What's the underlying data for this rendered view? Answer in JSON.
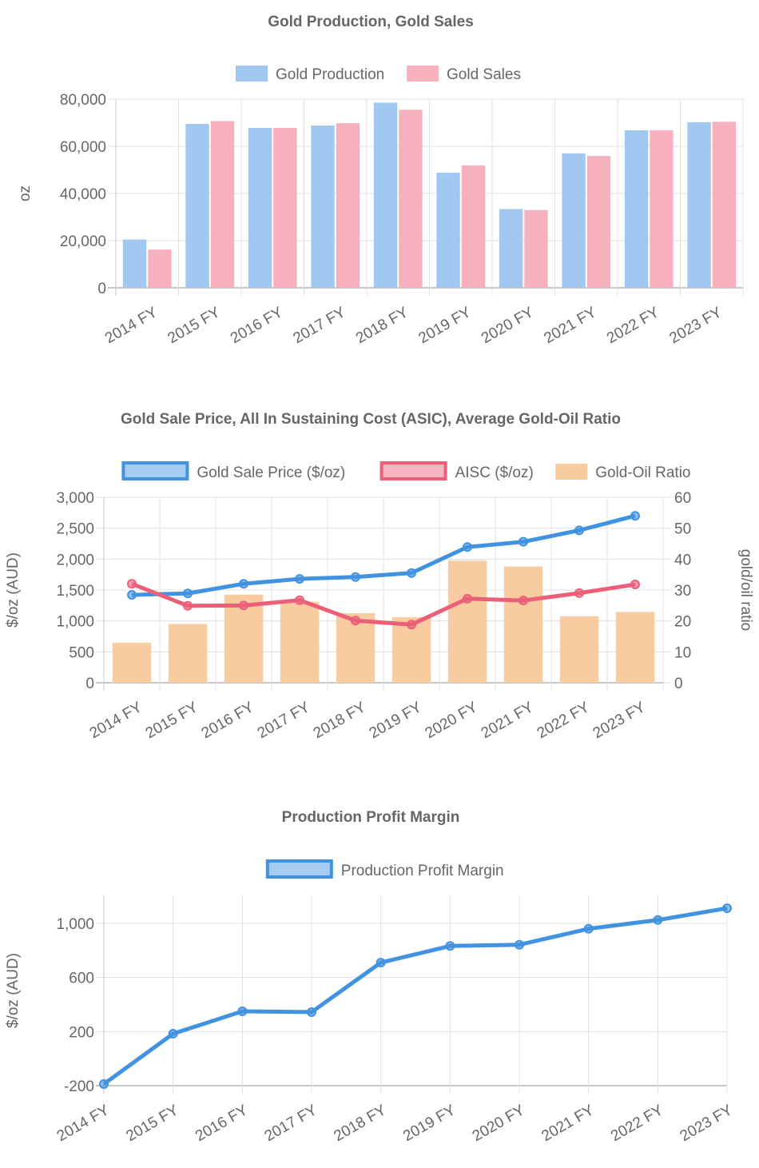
{
  "chart_data": [
    {
      "type": "bar",
      "title": "Gold Production, Gold Sales",
      "categories": [
        "2014 FY",
        "2015 FY",
        "2016 FY",
        "2017 FY",
        "2018 FY",
        "2019 FY",
        "2020 FY",
        "2021 FY",
        "2022 FY",
        "2023 FY"
      ],
      "ylabel": "oz",
      "ylim": [
        0,
        80000
      ],
      "yticks": [
        "0",
        "20,000",
        "40,000",
        "60,000",
        "80,000"
      ],
      "grid": true,
      "legend": "top",
      "series": [
        {
          "name": "Gold Production",
          "color": "#a0c8f0",
          "values": [
            20500,
            69500,
            67800,
            68800,
            78500,
            48800,
            33400,
            57000,
            66800,
            70200
          ]
        },
        {
          "name": "Gold Sales",
          "color": "#f7b0bd",
          "values": [
            16200,
            70700,
            67800,
            69800,
            75500,
            51900,
            33000,
            55900,
            66800,
            70400
          ]
        }
      ]
    },
    {
      "type": "bar+line",
      "title": "Gold Sale Price, All In Sustaining Cost (ASIC), Average Gold-Oil Ratio",
      "categories": [
        "2014 FY",
        "2015 FY",
        "2016 FY",
        "2017 FY",
        "2018 FY",
        "2019 FY",
        "2020 FY",
        "2021 FY",
        "2022 FY",
        "2023 FY"
      ],
      "ylabel": "$/oz (AUD)",
      "ylabel_right": "gold/oil ratio",
      "ylim": [
        0,
        3000
      ],
      "ylim_right": [
        0,
        60
      ],
      "yticks": [
        "0",
        "500",
        "1,000",
        "1,500",
        "2,000",
        "2,500",
        "3,000"
      ],
      "yticks_right": [
        "0",
        "10",
        "20",
        "30",
        "40",
        "50",
        "60"
      ],
      "grid": true,
      "legend": "top",
      "series": [
        {
          "name": "Gold Sale Price ($/oz)",
          "type": "line",
          "axis": "left",
          "color": "#4192e0",
          "values": [
            1420,
            1445,
            1600,
            1680,
            1710,
            1775,
            2195,
            2280,
            2465,
            2700
          ]
        },
        {
          "name": "AISC ($/oz)",
          "type": "line",
          "axis": "left",
          "color": "#ec5f78",
          "values": [
            1600,
            1245,
            1250,
            1335,
            1005,
            940,
            1360,
            1330,
            1450,
            1590
          ]
        },
        {
          "name": "Gold-Oil Ratio",
          "type": "bar",
          "axis": "right",
          "color": "#f8cca0",
          "values": [
            12.9,
            19.0,
            28.5,
            26.2,
            22.5,
            21.2,
            39.5,
            37.6,
            21.5,
            22.9
          ]
        }
      ]
    },
    {
      "type": "line",
      "title": "Production Profit Margin",
      "categories": [
        "2014 FY",
        "2015 FY",
        "2016 FY",
        "2017 FY",
        "2018 FY",
        "2019 FY",
        "2020 FY",
        "2021 FY",
        "2022 FY",
        "2023 FY"
      ],
      "ylabel": "$/oz (AUD)",
      "ylim": [
        -200,
        1207
      ],
      "yticks": [
        "-200",
        "200",
        "600",
        "1,000"
      ],
      "grid": true,
      "legend": "top",
      "series": [
        {
          "name": "Production Profit Margin",
          "color": "#4192e0",
          "values": [
            -188,
            184,
            350,
            344,
            710,
            833,
            842,
            960,
            1025,
            1112
          ]
        }
      ]
    }
  ]
}
